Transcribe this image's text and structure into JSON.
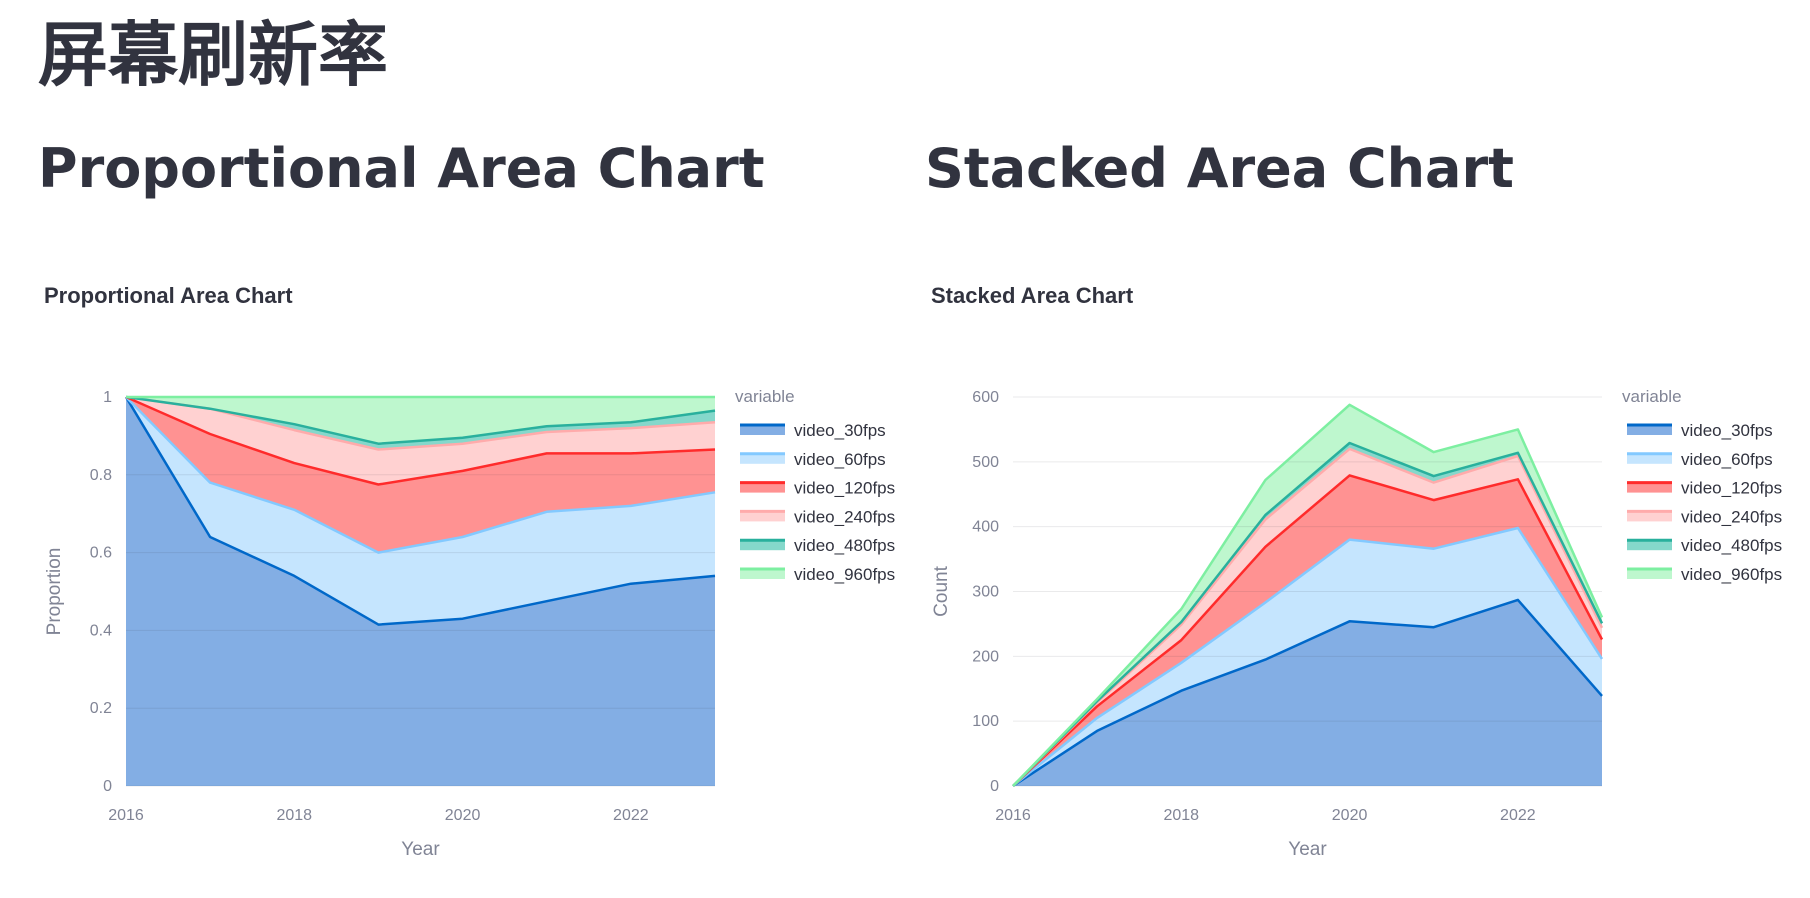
{
  "page": {
    "title": "屏幕刷新率"
  },
  "sections": {
    "left_heading": "Proportional Area Chart",
    "right_heading": "Stacked Area Chart"
  },
  "chart_data": [
    {
      "type": "area",
      "stacked": "normalize",
      "title": "Proportional Area Chart",
      "xlabel": "Year",
      "ylabel": "Proportion",
      "x": [
        2016,
        2017,
        2018,
        2019,
        2020,
        2021,
        2022,
        2023
      ],
      "xticks": [
        2016,
        2018,
        2020,
        2022
      ],
      "xlim": [
        2016,
        2023
      ],
      "ylim": [
        0,
        1
      ],
      "yticks": [
        0,
        0.2,
        0.4,
        0.6,
        0.8,
        1
      ],
      "ytick_labels": [
        "0",
        "0.2",
        "0.4",
        "0.6",
        "0.8",
        "1"
      ],
      "grid": true,
      "legend": {
        "title": "variable",
        "placement": "right"
      },
      "series": [
        {
          "name": "video_30fps",
          "values": [
            1.0,
            0.64,
            0.54,
            0.415,
            0.43,
            0.475,
            0.52,
            0.54
          ],
          "line_color": "#0068c9",
          "fill_color": "#83aee4"
        },
        {
          "name": "video_60fps",
          "values": [
            0.0,
            0.14,
            0.17,
            0.185,
            0.21,
            0.23,
            0.2,
            0.215
          ],
          "line_color": "#83c9ff",
          "fill_color": "#c5e5fe"
        },
        {
          "name": "video_120fps",
          "values": [
            0.0,
            0.125,
            0.12,
            0.175,
            0.17,
            0.15,
            0.135,
            0.11
          ],
          "line_color": "#ff2b2b",
          "fill_color": "#ff9292"
        },
        {
          "name": "video_240fps",
          "values": [
            0.0,
            0.065,
            0.085,
            0.09,
            0.07,
            0.055,
            0.065,
            0.07
          ],
          "line_color": "#ffabab",
          "fill_color": "#ffd1d1"
        },
        {
          "name": "video_480fps",
          "values": [
            0.0,
            0.0,
            0.015,
            0.015,
            0.015,
            0.015,
            0.015,
            0.03
          ],
          "line_color": "#29b09d",
          "fill_color": "#85d8cb"
        },
        {
          "name": "video_960fps",
          "values": [
            0.0,
            0.03,
            0.07,
            0.12,
            0.105,
            0.075,
            0.065,
            0.035
          ],
          "line_color": "#7defa1",
          "fill_color": "#bef7ce"
        }
      ]
    },
    {
      "type": "area",
      "stacked": "zero",
      "title": "Stacked Area Chart",
      "xlabel": "Year",
      "ylabel": "Count",
      "x": [
        2016,
        2017,
        2018,
        2019,
        2020,
        2021,
        2022,
        2023
      ],
      "xticks": [
        2016,
        2018,
        2020,
        2022
      ],
      "xlim": [
        2016,
        2023
      ],
      "ylim": [
        0,
        600
      ],
      "yticks": [
        0,
        100,
        200,
        300,
        400,
        500,
        600
      ],
      "ytick_labels": [
        "0",
        "100",
        "200",
        "300",
        "400",
        "500",
        "600"
      ],
      "grid": true,
      "legend": {
        "title": "variable",
        "placement": "right"
      },
      "series": [
        {
          "name": "video_30fps",
          "values": [
            0,
            85,
            147,
            195,
            254,
            245,
            287,
            139
          ],
          "line_color": "#0068c9",
          "fill_color": "#83aee4"
        },
        {
          "name": "video_60fps",
          "values": [
            0,
            20,
            43,
            88,
            126,
            121,
            111,
            57
          ],
          "line_color": "#83c9ff",
          "fill_color": "#c5e5fe"
        },
        {
          "name": "video_120fps",
          "values": [
            0,
            18,
            35,
            86,
            99,
            75,
            75,
            30
          ],
          "line_color": "#ff2b2b",
          "fill_color": "#ff9292"
        },
        {
          "name": "video_240fps",
          "values": [
            0,
            6,
            24,
            42,
            41,
            27,
            36,
            18
          ],
          "line_color": "#ffabab",
          "fill_color": "#ffd1d1"
        },
        {
          "name": "video_480fps",
          "values": [
            0,
            2,
            4,
            7,
            9,
            10,
            5,
            7
          ],
          "line_color": "#29b09d",
          "fill_color": "#85d8cb"
        },
        {
          "name": "video_960fps",
          "values": [
            0,
            3,
            20,
            54,
            59,
            37,
            36,
            9
          ],
          "line_color": "#7defa1",
          "fill_color": "#bef7ce"
        }
      ]
    }
  ]
}
